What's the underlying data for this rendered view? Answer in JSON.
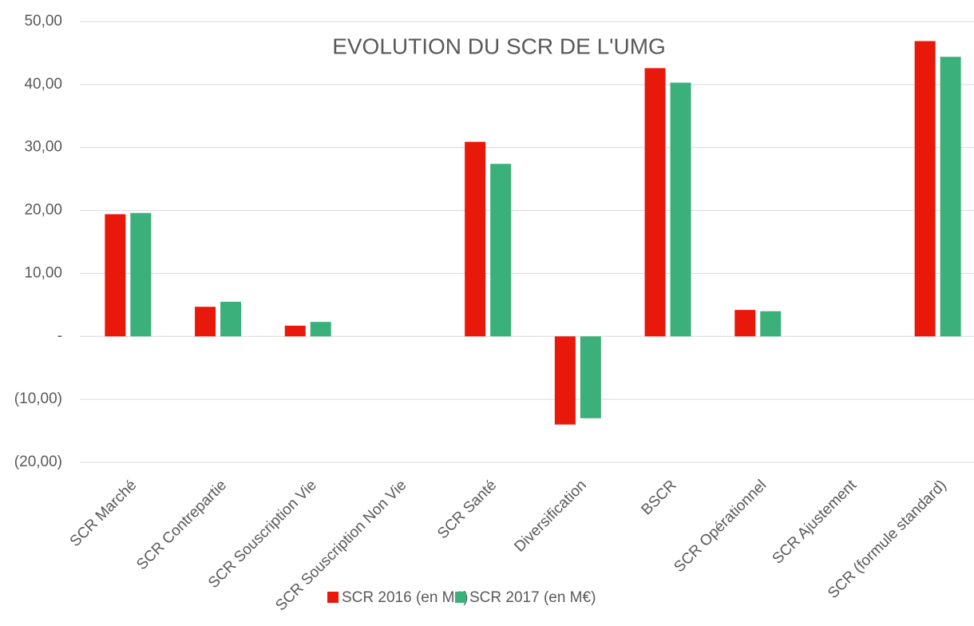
{
  "chart_data": {
    "type": "bar",
    "title": "EVOLUTION DU SCR DE L'UMG",
    "categories": [
      "SCR Marché",
      "SCR Contrepartie",
      "SCR Souscription Vie",
      "SCR Souscription Non Vie",
      "SCR Santé",
      "Diversification",
      "BSCR",
      "SCR Opérationnel",
      "SCR Ajustement",
      "SCR (formule standard)"
    ],
    "series": [
      {
        "name": "SCR 2016 (en M€)",
        "color": "#e8190b",
        "values": [
          19.4,
          4.7,
          1.7,
          0,
          30.9,
          -14.0,
          42.6,
          4.2,
          0,
          46.9
        ]
      },
      {
        "name": "SCR 2017 (en M€)",
        "color": "#3cb07a",
        "values": [
          19.6,
          5.5,
          2.3,
          0,
          27.4,
          -13.0,
          40.3,
          4.0,
          0,
          44.4
        ]
      }
    ],
    "ylim": [
      -20,
      50
    ],
    "yticks": [
      {
        "value": -20,
        "label": "(20,00)"
      },
      {
        "value": -10,
        "label": "(10,00)"
      },
      {
        "value": 0,
        "label": "-"
      },
      {
        "value": 10,
        "label": "10,00"
      },
      {
        "value": 20,
        "label": "20,00"
      },
      {
        "value": 30,
        "label": "30,00"
      },
      {
        "value": 40,
        "label": "40,00"
      },
      {
        "value": 50,
        "label": "50,00"
      }
    ],
    "grid": true,
    "legend": "bottom"
  }
}
